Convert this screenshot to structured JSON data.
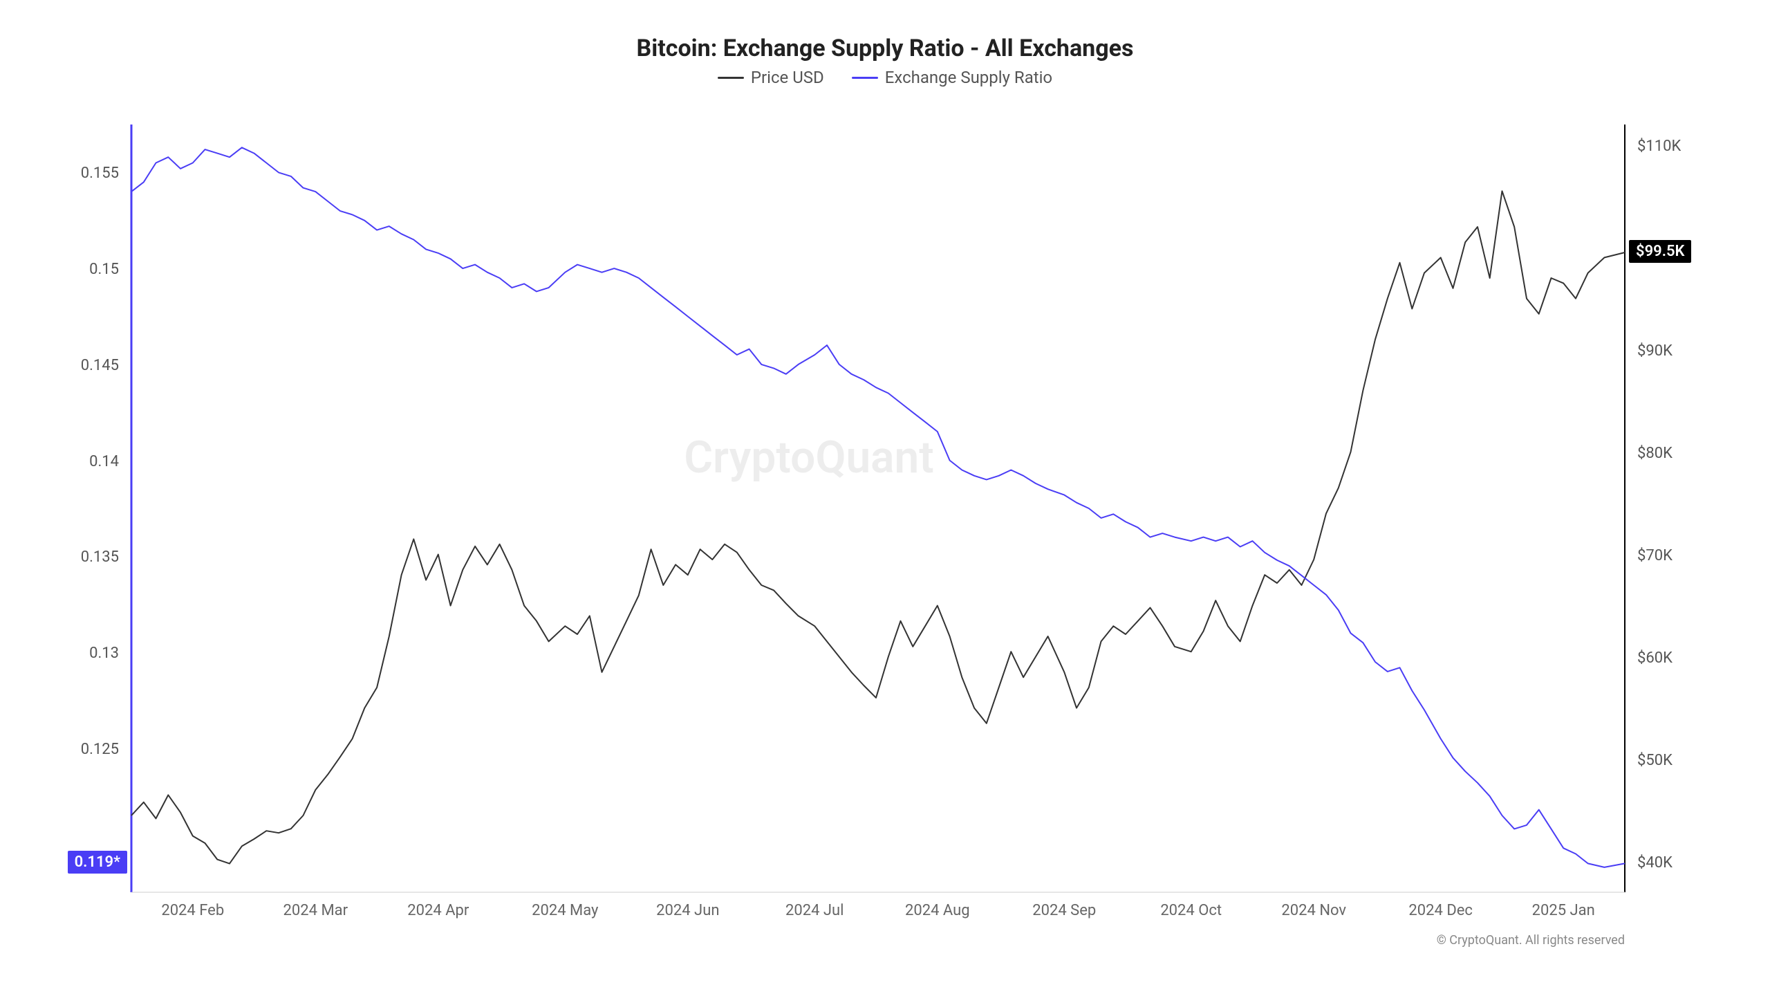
{
  "chart": {
    "type": "line-dual-axis",
    "title": "Bitcoin: Exchange Supply Ratio - All Exchanges",
    "title_fontsize": 34,
    "legend": [
      {
        "label": "Price USD",
        "color": "#333333"
      },
      {
        "label": "Exchange Supply Ratio",
        "color": "#4a3df5"
      }
    ],
    "legend_fontsize": 24,
    "watermark": "CryptoQuant",
    "watermark_fontsize": 64,
    "copyright": "© CryptoQuant. All rights reserved",
    "copyright_fontsize": 18,
    "background_color": "#ffffff",
    "axis_color": "#000000",
    "left_axis_color": "#4a3df5",
    "label_fontsize": 22,
    "tick_fontsize": 22,
    "line_width": 2,
    "price_badge": {
      "text": "$99.5K",
      "bg": "#000000",
      "fg": "#ffffff"
    },
    "ratio_badge": {
      "text": "0.119*",
      "bg": "#4a3df5",
      "fg": "#ffffff"
    },
    "y_left": {
      "min": 0.1175,
      "max": 0.1575,
      "ticks": [
        0.125,
        0.13,
        0.135,
        0.14,
        0.145,
        0.15,
        0.155
      ],
      "tick_labels": [
        "0.125",
        "0.13",
        "0.135",
        "0.14",
        "0.145",
        "0.15",
        "0.155"
      ]
    },
    "y_right": {
      "min": 37000,
      "max": 112000,
      "ticks": [
        40000,
        50000,
        60000,
        70000,
        80000,
        90000,
        100000,
        110000
      ],
      "tick_labels": [
        "$40K",
        "$50K",
        "$60K",
        "$70K",
        "$80K",
        "$90K",
        "$100K",
        "$110K"
      ]
    },
    "x": {
      "min": 0,
      "max": 365,
      "ticks": [
        15,
        45,
        75,
        106,
        136,
        167,
        197,
        228,
        259,
        289,
        320,
        350
      ],
      "tick_labels": [
        "2024 Feb",
        "2024 Mar",
        "2024 Apr",
        "2024 May",
        "2024 Jun",
        "2024 Jul",
        "2024 Aug",
        "2024 Sep",
        "2024 Oct",
        "2024 Nov",
        "2024 Dec",
        "2025 Jan"
      ]
    },
    "series_ratio": {
      "color": "#4a3df5",
      "data": [
        [
          0,
          0.154
        ],
        [
          3,
          0.1545
        ],
        [
          6,
          0.1555
        ],
        [
          9,
          0.1558
        ],
        [
          12,
          0.1552
        ],
        [
          15,
          0.1555
        ],
        [
          18,
          0.1562
        ],
        [
          21,
          0.156
        ],
        [
          24,
          0.1558
        ],
        [
          27,
          0.1563
        ],
        [
          30,
          0.156
        ],
        [
          33,
          0.1555
        ],
        [
          36,
          0.155
        ],
        [
          39,
          0.1548
        ],
        [
          42,
          0.1542
        ],
        [
          45,
          0.154
        ],
        [
          48,
          0.1535
        ],
        [
          51,
          0.153
        ],
        [
          54,
          0.1528
        ],
        [
          57,
          0.1525
        ],
        [
          60,
          0.152
        ],
        [
          63,
          0.1522
        ],
        [
          66,
          0.1518
        ],
        [
          69,
          0.1515
        ],
        [
          72,
          0.151
        ],
        [
          75,
          0.1508
        ],
        [
          78,
          0.1505
        ],
        [
          81,
          0.15
        ],
        [
          84,
          0.1502
        ],
        [
          87,
          0.1498
        ],
        [
          90,
          0.1495
        ],
        [
          93,
          0.149
        ],
        [
          96,
          0.1492
        ],
        [
          99,
          0.1488
        ],
        [
          102,
          0.149
        ],
        [
          106,
          0.1498
        ],
        [
          109,
          0.1502
        ],
        [
          112,
          0.15
        ],
        [
          115,
          0.1498
        ],
        [
          118,
          0.15
        ],
        [
          121,
          0.1498
        ],
        [
          124,
          0.1495
        ],
        [
          127,
          0.149
        ],
        [
          130,
          0.1485
        ],
        [
          133,
          0.148
        ],
        [
          136,
          0.1475
        ],
        [
          139,
          0.147
        ],
        [
          142,
          0.1465
        ],
        [
          145,
          0.146
        ],
        [
          148,
          0.1455
        ],
        [
          151,
          0.1458
        ],
        [
          154,
          0.145
        ],
        [
          157,
          0.1448
        ],
        [
          160,
          0.1445
        ],
        [
          163,
          0.145
        ],
        [
          167,
          0.1455
        ],
        [
          170,
          0.146
        ],
        [
          173,
          0.145
        ],
        [
          176,
          0.1445
        ],
        [
          179,
          0.1442
        ],
        [
          182,
          0.1438
        ],
        [
          185,
          0.1435
        ],
        [
          188,
          0.143
        ],
        [
          191,
          0.1425
        ],
        [
          194,
          0.142
        ],
        [
          197,
          0.1415
        ],
        [
          200,
          0.14
        ],
        [
          203,
          0.1395
        ],
        [
          206,
          0.1392
        ],
        [
          209,
          0.139
        ],
        [
          212,
          0.1392
        ],
        [
          215,
          0.1395
        ],
        [
          218,
          0.1392
        ],
        [
          221,
          0.1388
        ],
        [
          224,
          0.1385
        ],
        [
          228,
          0.1382
        ],
        [
          231,
          0.1378
        ],
        [
          234,
          0.1375
        ],
        [
          237,
          0.137
        ],
        [
          240,
          0.1372
        ],
        [
          243,
          0.1368
        ],
        [
          246,
          0.1365
        ],
        [
          249,
          0.136
        ],
        [
          252,
          0.1362
        ],
        [
          255,
          0.136
        ],
        [
          259,
          0.1358
        ],
        [
          262,
          0.136
        ],
        [
          265,
          0.1358
        ],
        [
          268,
          0.136
        ],
        [
          271,
          0.1355
        ],
        [
          274,
          0.1358
        ],
        [
          277,
          0.1352
        ],
        [
          280,
          0.1348
        ],
        [
          283,
          0.1345
        ],
        [
          286,
          0.134
        ],
        [
          289,
          0.1335
        ],
        [
          292,
          0.133
        ],
        [
          295,
          0.1322
        ],
        [
          298,
          0.131
        ],
        [
          301,
          0.1305
        ],
        [
          304,
          0.1295
        ],
        [
          307,
          0.129
        ],
        [
          310,
          0.1292
        ],
        [
          313,
          0.128
        ],
        [
          316,
          0.127
        ],
        [
          320,
          0.1255
        ],
        [
          323,
          0.1245
        ],
        [
          326,
          0.1238
        ],
        [
          329,
          0.1232
        ],
        [
          332,
          0.1225
        ],
        [
          335,
          0.1215
        ],
        [
          338,
          0.1208
        ],
        [
          341,
          0.121
        ],
        [
          344,
          0.1218
        ],
        [
          347,
          0.1208
        ],
        [
          350,
          0.1198
        ],
        [
          353,
          0.1195
        ],
        [
          356,
          0.119
        ],
        [
          360,
          0.1188
        ],
        [
          365,
          0.119
        ]
      ]
    },
    "series_price": {
      "color": "#333333",
      "data": [
        [
          0,
          44500
        ],
        [
          3,
          45800
        ],
        [
          6,
          44200
        ],
        [
          9,
          46500
        ],
        [
          12,
          44800
        ],
        [
          15,
          42500
        ],
        [
          18,
          41800
        ],
        [
          21,
          40200
        ],
        [
          24,
          39800
        ],
        [
          27,
          41500
        ],
        [
          30,
          42200
        ],
        [
          33,
          43000
        ],
        [
          36,
          42800
        ],
        [
          39,
          43200
        ],
        [
          42,
          44500
        ],
        [
          45,
          47000
        ],
        [
          48,
          48500
        ],
        [
          51,
          50200
        ],
        [
          54,
          52000
        ],
        [
          57,
          55000
        ],
        [
          60,
          57000
        ],
        [
          63,
          62000
        ],
        [
          66,
          68000
        ],
        [
          69,
          71500
        ],
        [
          72,
          67500
        ],
        [
          75,
          70000
        ],
        [
          78,
          65000
        ],
        [
          81,
          68500
        ],
        [
          84,
          70800
        ],
        [
          87,
          69000
        ],
        [
          90,
          71000
        ],
        [
          93,
          68500
        ],
        [
          96,
          65000
        ],
        [
          99,
          63500
        ],
        [
          102,
          61500
        ],
        [
          106,
          63000
        ],
        [
          109,
          62200
        ],
        [
          112,
          64000
        ],
        [
          115,
          58500
        ],
        [
          118,
          61000
        ],
        [
          121,
          63500
        ],
        [
          124,
          66000
        ],
        [
          127,
          70500
        ],
        [
          130,
          67000
        ],
        [
          133,
          69000
        ],
        [
          136,
          68000
        ],
        [
          139,
          70500
        ],
        [
          142,
          69500
        ],
        [
          145,
          71000
        ],
        [
          148,
          70200
        ],
        [
          151,
          68500
        ],
        [
          154,
          67000
        ],
        [
          157,
          66500
        ],
        [
          160,
          65200
        ],
        [
          163,
          64000
        ],
        [
          167,
          63000
        ],
        [
          170,
          61500
        ],
        [
          173,
          60000
        ],
        [
          176,
          58500
        ],
        [
          179,
          57200
        ],
        [
          182,
          56000
        ],
        [
          185,
          60000
        ],
        [
          188,
          63500
        ],
        [
          191,
          61000
        ],
        [
          194,
          63000
        ],
        [
          197,
          65000
        ],
        [
          200,
          62000
        ],
        [
          203,
          58000
        ],
        [
          206,
          55000
        ],
        [
          209,
          53500
        ],
        [
          212,
          57000
        ],
        [
          215,
          60500
        ],
        [
          218,
          58000
        ],
        [
          221,
          60000
        ],
        [
          224,
          62000
        ],
        [
          228,
          58500
        ],
        [
          231,
          55000
        ],
        [
          234,
          57000
        ],
        [
          237,
          61500
        ],
        [
          240,
          63000
        ],
        [
          243,
          62200
        ],
        [
          246,
          63500
        ],
        [
          249,
          64800
        ],
        [
          252,
          63000
        ],
        [
          255,
          61000
        ],
        [
          259,
          60500
        ],
        [
          262,
          62500
        ],
        [
          265,
          65500
        ],
        [
          268,
          63000
        ],
        [
          271,
          61500
        ],
        [
          274,
          65000
        ],
        [
          277,
          68000
        ],
        [
          280,
          67200
        ],
        [
          283,
          68500
        ],
        [
          286,
          67000
        ],
        [
          289,
          69500
        ],
        [
          292,
          74000
        ],
        [
          295,
          76500
        ],
        [
          298,
          80000
        ],
        [
          301,
          86000
        ],
        [
          304,
          91000
        ],
        [
          307,
          95000
        ],
        [
          310,
          98500
        ],
        [
          313,
          94000
        ],
        [
          316,
          97500
        ],
        [
          320,
          99000
        ],
        [
          323,
          96000
        ],
        [
          326,
          100500
        ],
        [
          329,
          102000
        ],
        [
          332,
          97000
        ],
        [
          335,
          105500
        ],
        [
          338,
          102000
        ],
        [
          341,
          95000
        ],
        [
          344,
          93500
        ],
        [
          347,
          97000
        ],
        [
          350,
          96500
        ],
        [
          353,
          95000
        ],
        [
          356,
          97500
        ],
        [
          360,
          99000
        ],
        [
          365,
          99500
        ]
      ]
    }
  }
}
